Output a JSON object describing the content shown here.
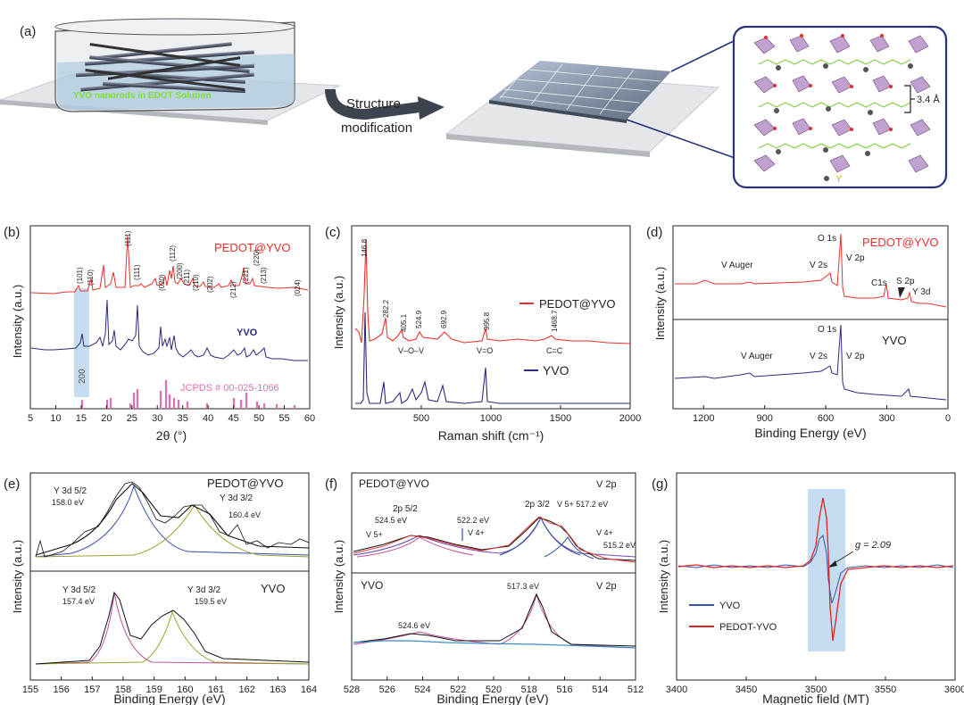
{
  "panel_a": {
    "label": "(a)",
    "solution_text": "YVO nanorods in EDOT Solution",
    "arrow_line1": "Structure",
    "arrow_line2": "modification",
    "spacing": "3.4 Å",
    "legend_y": "Y"
  },
  "chart_data": [
    {
      "panel": "(b)",
      "type": "line",
      "xlabel": "2θ (°)",
      "ylabel": "Intensity (a.u.)",
      "xlim": [
        5,
        60
      ],
      "xticks": [
        "5",
        "10",
        "15",
        "20",
        "25",
        "30",
        "35",
        "40",
        "45",
        "50",
        "55",
        "60"
      ],
      "series": [
        {
          "name": "PEDOT@YVO",
          "color": "#e8302a"
        },
        {
          "name": "YVO",
          "color": "#2b2a7c"
        }
      ],
      "reference": "JCPDS # 00-025-1066",
      "highlight": "200",
      "peaks": [
        "(101)",
        "(110)",
        "(111)",
        "(111)",
        "(020)",
        "(112)",
        "(200)",
        "(211)",
        "(210)",
        "(202)",
        "(212)",
        "(221)",
        "(220)",
        "(213)",
        "(024)"
      ]
    },
    {
      "panel": "(c)",
      "type": "line",
      "xlabel": "Raman shift (cm⁻¹)",
      "ylabel": "Intensity (a.u.)",
      "xlim": [
        0,
        2000
      ],
      "xticks": [
        "500",
        "1000",
        "1500",
        "2000"
      ],
      "series": [
        {
          "name": "PEDOT@YVO",
          "color": "#e8302a"
        },
        {
          "name": "YVO",
          "color": "#2b2a7c"
        }
      ],
      "peak_labels": [
        "146.8",
        "282.2",
        "405.1",
        "524.9",
        "692.9",
        "995.8",
        "1468.7"
      ],
      "annotations": [
        "V–O–V",
        "V=O",
        "C=C"
      ]
    },
    {
      "panel": "(d)",
      "type": "line",
      "xlabel": "Binding Energy (eV)",
      "ylabel": "Intensity (a.u.)",
      "xlim": [
        1350,
        0
      ],
      "xticks": [
        "1200",
        "900",
        "600",
        "300",
        "0"
      ],
      "series": [
        {
          "name": "PEDOT@YVO",
          "color": "#e8302a"
        },
        {
          "name": "YVO",
          "color": "#2b2a7c"
        }
      ],
      "top_labels": [
        "O 1s",
        "V Auger",
        "V 2s",
        "V 2p",
        "C1s",
        "S 2p",
        "Y 3d"
      ],
      "bottom_labels": [
        "O 1s",
        "V Auger",
        "V 2s",
        "V 2p"
      ]
    },
    {
      "panel": "(e)",
      "type": "line",
      "xlabel": "Binding Energy (eV)",
      "ylabel": "Intensity (a.u.)",
      "xlim": [
        155,
        164
      ],
      "xticks": [
        "155",
        "156",
        "157",
        "158",
        "159",
        "160",
        "161",
        "162",
        "163",
        "164"
      ],
      "top": {
        "name": "PEDOT@YVO",
        "labels": [
          "Y 3d 5/2",
          "158.0 eV",
          "Y 3d 3/2",
          "160.4 eV"
        ]
      },
      "bottom": {
        "name": "YVO",
        "labels": [
          "Y 3d 5/2",
          "157.4 eV",
          "Y 3d 3/2",
          "159.5 eV"
        ]
      }
    },
    {
      "panel": "(f)",
      "type": "line",
      "xlabel": "Binding Energy (eV)",
      "ylabel": "Intensity (a.u.)",
      "xlim": [
        528,
        512
      ],
      "xticks": [
        "528",
        "526",
        "524",
        "522",
        "520",
        "518",
        "516",
        "514",
        "512"
      ],
      "top": {
        "name": "PEDOT@YVO",
        "tag": "V 2p",
        "labels": [
          "2p 5/2",
          "524.5 eV",
          "522.2 eV",
          "V 5+",
          "V 4+",
          "2p 3/2",
          "V 5+ 517.2 eV",
          "V 4+",
          "515.2 eV"
        ]
      },
      "bottom": {
        "name": "YVO",
        "tag": "V 2p",
        "labels": [
          "524.6 eV",
          "517.3 eV"
        ]
      }
    },
    {
      "panel": "(g)",
      "type": "line",
      "xlabel": "Magnetic field (MT)",
      "ylabel": "Intensity (a.u.)",
      "xlim": [
        3400,
        3600
      ],
      "xticks": [
        "3400",
        "3450",
        "3500",
        "3550",
        "3600"
      ],
      "series": [
        {
          "name": "YVO",
          "color": "#3554b0"
        },
        {
          "name": "PEDOT-YVO",
          "color": "#e02424"
        }
      ],
      "annotation": "g = 2.09"
    }
  ]
}
